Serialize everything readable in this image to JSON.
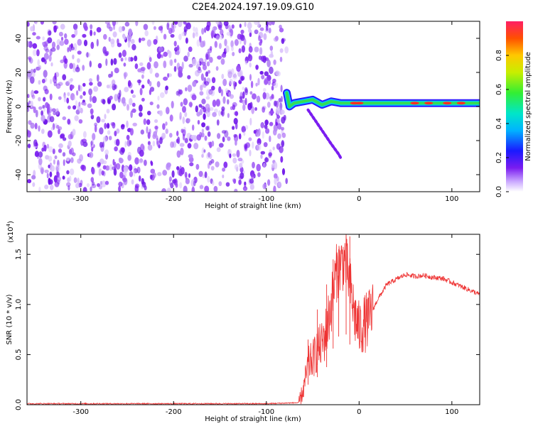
{
  "figure_title": "C2E4.2024.197.19.09.G10",
  "colors": {
    "spectrum_purple": "#7a1cf0",
    "snr_line": "#ee3333",
    "ridge_green": "#33dd55"
  },
  "chart_data": [
    {
      "type": "heatmap",
      "title": "C2E4.2024.197.19.09.G10",
      "xlabel": "Height of straight line (km)",
      "ylabel": "Frequency (Hz)",
      "xlim": [
        -358,
        130
      ],
      "ylim": [
        -50,
        50
      ],
      "xticks": [
        "-300",
        "-200",
        "-100",
        "0",
        "100"
      ],
      "xtick_values": [
        -300,
        -200,
        -100,
        0,
        100
      ],
      "yticks": [
        "40",
        "20",
        "0",
        "-20",
        "-40"
      ],
      "ytick_values": [
        40,
        20,
        0,
        -20,
        -40
      ],
      "noise_region": {
        "x_range": [
          -358,
          -78
        ],
        "y_range": [
          -50,
          50
        ],
        "description_level": "low normalized amplitude, purple speckle"
      },
      "signal_ridge": {
        "frequency_hz": 2,
        "x_start": -78,
        "x_end": 130,
        "points": [
          {
            "x": -78,
            "y": 8
          },
          {
            "x": -75,
            "y": 0
          },
          {
            "x": -70,
            "y": 2
          },
          {
            "x": -60,
            "y": 3
          },
          {
            "x": -50,
            "y": 4
          },
          {
            "x": -40,
            "y": 1
          },
          {
            "x": -30,
            "y": 3
          },
          {
            "x": -20,
            "y": 2
          },
          {
            "x": 0,
            "y": 2
          },
          {
            "x": 50,
            "y": 2
          },
          {
            "x": 100,
            "y": 2
          },
          {
            "x": 130,
            "y": 2
          }
        ]
      },
      "side_branch": [
        {
          "x": -55,
          "y": -2
        },
        {
          "x": -45,
          "y": -10
        },
        {
          "x": -35,
          "y": -18
        },
        {
          "x": -30,
          "y": -22
        },
        {
          "x": -22,
          "y": -28
        },
        {
          "x": -20,
          "y": -30
        }
      ],
      "colorbar": {
        "label": "Normalized spectral amplitude",
        "ticks": [
          "0.0",
          "0.2",
          "0.4",
          "0.6",
          "0.8"
        ],
        "tick_values": [
          0.0,
          0.2,
          0.4,
          0.6,
          0.8
        ],
        "range": [
          0,
          1
        ]
      }
    },
    {
      "type": "line",
      "xlabel": "Height of straight line (km)",
      "ylabel": "SNR (10 * v/v)",
      "y_multiplier": "(x10",
      "y_multiplier_exp": "4",
      "y_multiplier_close": ")",
      "xlim": [
        -358,
        130
      ],
      "ylim": [
        0,
        1.7
      ],
      "xticks": [
        "-300",
        "-200",
        "-100",
        "0",
        "100"
      ],
      "xtick_values": [
        -300,
        -200,
        -100,
        0,
        100
      ],
      "yticks": [
        "0.0",
        "0.5",
        "1.0",
        "1.5"
      ],
      "ytick_values": [
        0.0,
        0.5,
        1.0,
        1.5
      ],
      "series": [
        {
          "color": "#ee3333",
          "points": [
            {
              "x": -358,
              "y": 0.01
            },
            {
              "x": -100,
              "y": 0.01
            },
            {
              "x": -65,
              "y": 0.02
            },
            {
              "x": -60,
              "y": 0.15
            },
            {
              "x": -55,
              "y": 0.4
            },
            {
              "x": -50,
              "y": 0.45
            },
            {
              "x": -45,
              "y": 0.55
            },
            {
              "x": -40,
              "y": 0.6
            },
            {
              "x": -35,
              "y": 0.75
            },
            {
              "x": -30,
              "y": 1.0
            },
            {
              "x": -25,
              "y": 1.3
            },
            {
              "x": -20,
              "y": 1.4
            },
            {
              "x": -15,
              "y": 1.45
            },
            {
              "x": -10,
              "y": 1.2
            },
            {
              "x": -5,
              "y": 0.9
            },
            {
              "x": 0,
              "y": 0.75
            },
            {
              "x": 10,
              "y": 0.85
            },
            {
              "x": 20,
              "y": 1.05
            },
            {
              "x": 30,
              "y": 1.2
            },
            {
              "x": 40,
              "y": 1.25
            },
            {
              "x": 50,
              "y": 1.3
            },
            {
              "x": 60,
              "y": 1.28
            },
            {
              "x": 70,
              "y": 1.29
            },
            {
              "x": 80,
              "y": 1.27
            },
            {
              "x": 90,
              "y": 1.26
            },
            {
              "x": 100,
              "y": 1.22
            },
            {
              "x": 110,
              "y": 1.18
            },
            {
              "x": 120,
              "y": 1.14
            },
            {
              "x": 130,
              "y": 1.1
            }
          ],
          "spikes": [
            {
              "x": -14,
              "y": 1.72
            },
            {
              "x": -10,
              "y": 1.68
            },
            {
              "x": -22,
              "y": 1.55
            },
            {
              "x": -28,
              "y": 1.45
            },
            {
              "x": -35,
              "y": 1.2
            },
            {
              "x": -45,
              "y": 0.95
            },
            {
              "x": -55,
              "y": 0.65
            }
          ]
        }
      ]
    }
  ]
}
